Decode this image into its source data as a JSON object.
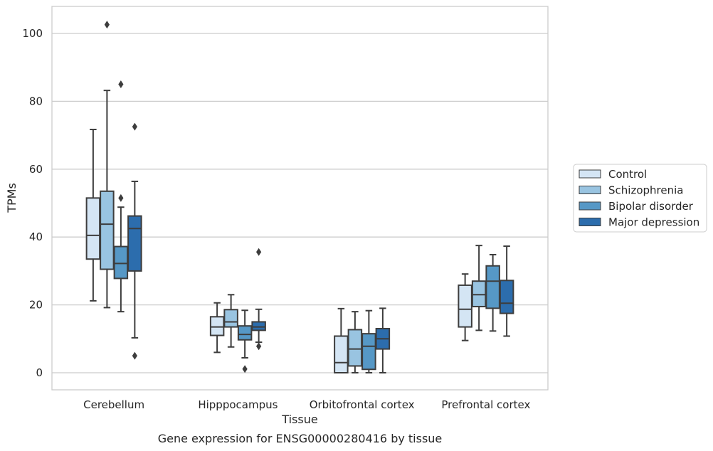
{
  "chart_data": {
    "type": "box",
    "title": "",
    "caption": "Gene expression for ENSG00000280416 by tissue",
    "xlabel": "Tissue",
    "ylabel": "TPMs",
    "ylim": [
      -5,
      108
    ],
    "yticks": [
      0,
      20,
      40,
      60,
      80,
      100
    ],
    "grid": "horizontal",
    "legend_position": "right",
    "categories": [
      "Cerebellum",
      "Hipppocampus",
      "Orbitofrontal cortex",
      "Prefrontal cortex"
    ],
    "series": [
      {
        "name": "Control",
        "color": "#d4e5f4",
        "boxes": [
          {
            "whislo": 21.2,
            "q1": 33.5,
            "med": 40.5,
            "q3": 51.5,
            "whishi": 71.7,
            "fliers": []
          },
          {
            "whislo": 6.0,
            "q1": 11.0,
            "med": 13.5,
            "q3": 16.5,
            "whishi": 20.6,
            "fliers": []
          },
          {
            "whislo": 0.0,
            "q1": 0.0,
            "med": 3.0,
            "q3": 10.8,
            "whishi": 18.9,
            "fliers": []
          },
          {
            "whislo": 9.5,
            "q1": 13.5,
            "med": 18.7,
            "q3": 25.8,
            "whishi": 29.1,
            "fliers": []
          }
        ]
      },
      {
        "name": "Schizophrenia",
        "color": "#99c4e1",
        "boxes": [
          {
            "whislo": 19.2,
            "q1": 30.5,
            "med": 43.8,
            "q3": 53.5,
            "whishi": 83.2,
            "fliers": [
              102.6
            ]
          },
          {
            "whislo": 7.6,
            "q1": 13.5,
            "med": 15.0,
            "q3": 18.6,
            "whishi": 23.0,
            "fliers": []
          },
          {
            "whislo": 0.0,
            "q1": 2.0,
            "med": 7.0,
            "q3": 12.7,
            "whishi": 18.0,
            "fliers": []
          },
          {
            "whislo": 12.5,
            "q1": 19.5,
            "med": 23.0,
            "q3": 27.0,
            "whishi": 37.5,
            "fliers": []
          }
        ]
      },
      {
        "name": "Bipolar disorder",
        "color": "#5698c6",
        "boxes": [
          {
            "whislo": 18.0,
            "q1": 27.8,
            "med": 32.2,
            "q3": 37.2,
            "whishi": 48.8,
            "fliers": [
              85.0,
              51.5
            ]
          },
          {
            "whislo": 4.4,
            "q1": 9.7,
            "med": 11.3,
            "q3": 13.8,
            "whishi": 18.4,
            "fliers": [
              1.1
            ]
          },
          {
            "whislo": 0.0,
            "q1": 1.0,
            "med": 7.8,
            "q3": 11.5,
            "whishi": 18.3,
            "fliers": []
          },
          {
            "whislo": 12.3,
            "q1": 19.0,
            "med": 27.0,
            "q3": 31.5,
            "whishi": 34.8,
            "fliers": []
          }
        ]
      },
      {
        "name": "Major depression",
        "color": "#2c6dad",
        "boxes": [
          {
            "whislo": 10.3,
            "q1": 30.0,
            "med": 42.5,
            "q3": 46.2,
            "whishi": 56.4,
            "fliers": [
              72.5,
              5.0
            ]
          },
          {
            "whislo": 9.0,
            "q1": 12.5,
            "med": 13.5,
            "q3": 15.0,
            "whishi": 18.7,
            "fliers": [
              35.6,
              7.8
            ]
          },
          {
            "whislo": 0.0,
            "q1": 7.0,
            "med": 10.0,
            "q3": 13.0,
            "whishi": 19.0,
            "fliers": []
          },
          {
            "whislo": 10.8,
            "q1": 17.5,
            "med": 20.5,
            "q3": 27.2,
            "whishi": 37.3,
            "fliers": []
          }
        ]
      }
    ]
  }
}
